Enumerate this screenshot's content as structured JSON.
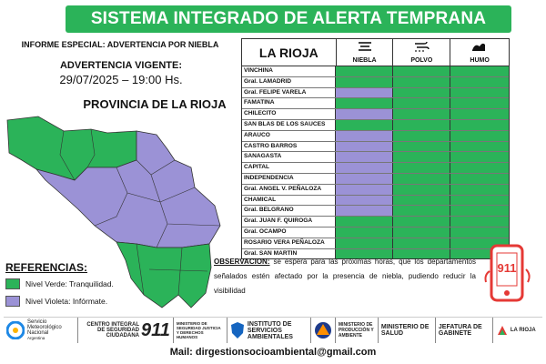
{
  "header": {
    "title": "SISTEMA INTEGRADO DE ALERTA TEMPRANA"
  },
  "informe": "INFORME ESPECIAL: ADVERTENCIA POR NIEBLA",
  "advertencia": {
    "label": "ADVERTENCIA VIGENTE:",
    "date": "29/07/2025 – 19:00 Hs."
  },
  "provincia": "PROVINCIA DE LA RIOJA",
  "colors": {
    "green": "#2bb359",
    "violet": "#9b92d6"
  },
  "referencias": {
    "title": "REFERENCIAS:",
    "items": [
      {
        "label": "Nivel Verde: Tranquilidad.",
        "color": "#2bb359"
      },
      {
        "label": "Nivel Violeta: Infórmate.",
        "color": "#9b92d6"
      }
    ]
  },
  "table": {
    "title": "LA RIOJA",
    "columns": [
      {
        "label": "NIEBLA",
        "icon": "fog-icon"
      },
      {
        "label": "POLVO",
        "icon": "dust-icon"
      },
      {
        "label": "HUMO",
        "icon": "smoke-icon"
      }
    ],
    "rows": [
      {
        "name": "VINCHINA",
        "levels": [
          "green",
          "green",
          "green"
        ]
      },
      {
        "name": "Gral. LAMADRID",
        "levels": [
          "green",
          "green",
          "green"
        ]
      },
      {
        "name": "Gral. FELIPE VARELA",
        "levels": [
          "violet",
          "green",
          "green"
        ]
      },
      {
        "name": "FAMATINA",
        "levels": [
          "green",
          "green",
          "green"
        ]
      },
      {
        "name": "CHILECITO",
        "levels": [
          "violet",
          "green",
          "green"
        ]
      },
      {
        "name": "SAN BLAS DE LOS SAUCES",
        "levels": [
          "green",
          "green",
          "green"
        ]
      },
      {
        "name": "ARAUCO",
        "levels": [
          "violet",
          "green",
          "green"
        ]
      },
      {
        "name": "CASTRO BARROS",
        "levels": [
          "violet",
          "green",
          "green"
        ]
      },
      {
        "name": "SANAGASTA",
        "levels": [
          "violet",
          "green",
          "green"
        ]
      },
      {
        "name": "CAPITAL",
        "levels": [
          "violet",
          "green",
          "green"
        ]
      },
      {
        "name": "INDEPENDENCIA",
        "levels": [
          "violet",
          "green",
          "green"
        ]
      },
      {
        "name": "Gral. ANGEL V. PEÑALOZA",
        "levels": [
          "violet",
          "green",
          "green"
        ]
      },
      {
        "name": "CHAMICAL",
        "levels": [
          "violet",
          "green",
          "green"
        ]
      },
      {
        "name": "Gral. BELGRANO",
        "levels": [
          "violet",
          "green",
          "green"
        ]
      },
      {
        "name": "Gral. JUAN F. QUIROGA",
        "levels": [
          "green",
          "green",
          "green"
        ]
      },
      {
        "name": "Gral. OCAMPO",
        "levels": [
          "green",
          "green",
          "green"
        ]
      },
      {
        "name": "ROSARIO VERA PEÑALOZA",
        "levels": [
          "green",
          "green",
          "green"
        ]
      },
      {
        "name": "Gral. SAN MARTIN",
        "levels": [
          "green",
          "green",
          "green"
        ]
      }
    ]
  },
  "observacion": {
    "label": "OBSERVACION:",
    "text": " se espera para las próximas horas, que los departamentos señalados estén afectado por la presencia de niebla, pudiendo reducir la visibilidad"
  },
  "phone": {
    "number": "911"
  },
  "footer": {
    "smn": "Servicio Meteorológico Nacional",
    "smn_sub": "Argentina",
    "centro": "CENTRO INTEGRAL DE SEGURIDAD CIUDADANA",
    "centro_num": "911",
    "ministerio_seg": "MINISTERIO DE SEGURIDAD JUSTICIA Y DERECHOS HUMANOS",
    "instituto": "INSTITUTO DE SERVICIOS AMBIENTALES",
    "ministerio_prod": "MINISTERIO DE PRODUCCIÓN Y AMBIENTE",
    "ministerio_salud": "MINISTERIO DE SALUD",
    "jefatura": "JEFATURA DE GABINETE",
    "larioja": "LA RIOJA",
    "mail": "Mail: dirgestionsocioambiental@gmail.com"
  }
}
